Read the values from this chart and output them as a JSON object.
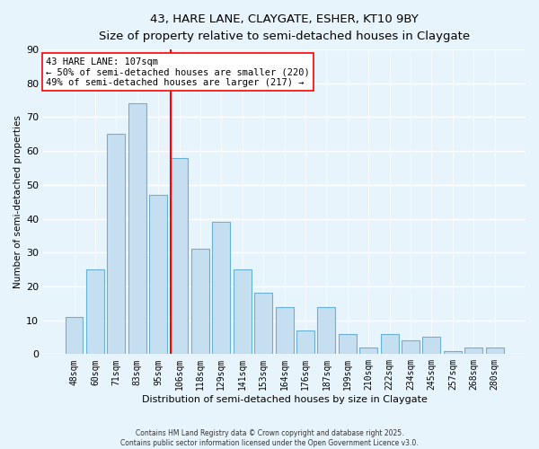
{
  "title_line1": "43, HARE LANE, CLAYGATE, ESHER, KT10 9BY",
  "title_line2": "Size of property relative to semi-detached houses in Claygate",
  "xlabel": "Distribution of semi-detached houses by size in Claygate",
  "ylabel": "Number of semi-detached properties",
  "bar_labels": [
    "48sqm",
    "60sqm",
    "71sqm",
    "83sqm",
    "95sqm",
    "106sqm",
    "118sqm",
    "129sqm",
    "141sqm",
    "153sqm",
    "164sqm",
    "176sqm",
    "187sqm",
    "199sqm",
    "210sqm",
    "222sqm",
    "234sqm",
    "245sqm",
    "257sqm",
    "268sqm",
    "280sqm"
  ],
  "bar_values": [
    11,
    25,
    65,
    74,
    47,
    58,
    31,
    39,
    25,
    18,
    14,
    7,
    14,
    6,
    2,
    6,
    4,
    5,
    1,
    2,
    2
  ],
  "bar_color": "#c5dff0",
  "bar_edge_color": "#6aafd6",
  "vline_color": "red",
  "vline_x_index": 5,
  "annotation_title": "43 HARE LANE: 107sqm",
  "annotation_line1": "← 50% of semi-detached houses are smaller (220)",
  "annotation_line2": "49% of semi-detached houses are larger (217) →",
  "ylim": [
    0,
    90
  ],
  "yticks": [
    0,
    10,
    20,
    30,
    40,
    50,
    60,
    70,
    80,
    90
  ],
  "bg_color": "#e8f4fc",
  "grid_color": "#ffffff",
  "footer_line1": "Contains HM Land Registry data © Crown copyright and database right 2025.",
  "footer_line2": "Contains public sector information licensed under the Open Government Licence v3.0."
}
